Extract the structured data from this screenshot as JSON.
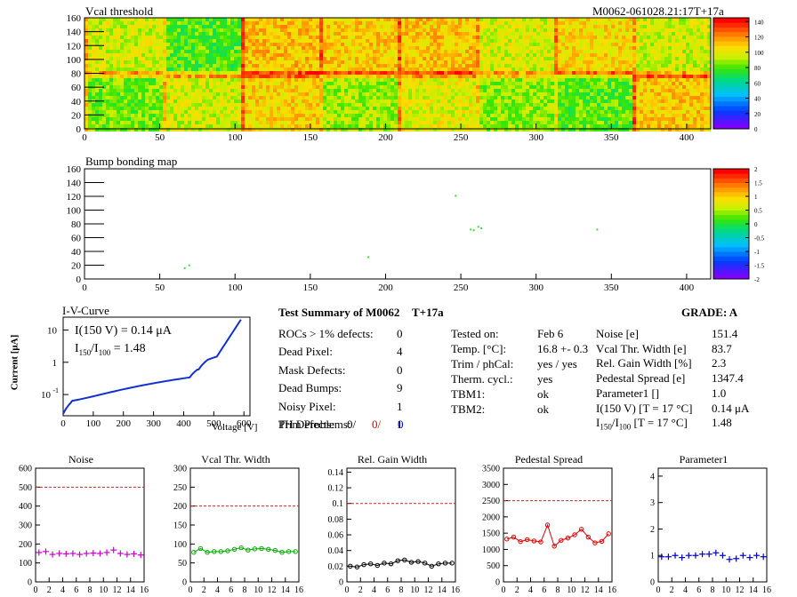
{
  "maps": {
    "vcal": {
      "title": "Vcal threshold",
      "module_label": "M0062-061028.21:17T+17a",
      "xticks": [
        0,
        50,
        100,
        150,
        200,
        250,
        300,
        350,
        400
      ],
      "yticks": [
        0,
        20,
        40,
        60,
        80,
        100,
        120,
        140,
        160
      ],
      "xrange": [
        0,
        416
      ],
      "yrange": [
        0,
        160
      ],
      "scale_ticks": [
        "0",
        "20",
        "40",
        "60",
        "80",
        "100",
        "120",
        "140"
      ],
      "scale_range": [
        0,
        145
      ]
    },
    "bump": {
      "title": "Bump bonding map",
      "xticks": [
        0,
        50,
        100,
        150,
        200,
        250,
        300,
        350,
        400
      ],
      "yticks": [
        0,
        20,
        40,
        60,
        80,
        100,
        120,
        140,
        160
      ],
      "xrange": [
        0,
        416
      ],
      "yrange": [
        0,
        160
      ],
      "scale_ticks": [
        "-2",
        "-1.5",
        "-1",
        "-0.5",
        "0",
        "0.5",
        "1",
        "1.5",
        "2"
      ],
      "scale_range": [
        -2,
        2
      ]
    }
  },
  "iv": {
    "title": "I-V-Curve",
    "ylabel": "Current [μA]",
    "xlabel": "Voltage [V]",
    "i150": "I(150 V) = 0.14 μA",
    "ratio_prefix": "I",
    "ratio_sub1": "150",
    "ratio_slash": "/I",
    "ratio_sub2": "100",
    "ratio_val": "=  1.48",
    "xticks": [
      "0",
      "100",
      "200",
      "300",
      "400",
      "500",
      "600"
    ],
    "yticks": [
      "10",
      "1",
      "10"
    ],
    "ytick_exp": "-1"
  },
  "summary": {
    "title": "Test Summary of M0062",
    "suffix": "T+17a",
    "grade": "GRADE:  A",
    "left": [
      {
        "label": "ROCs > 1% defects:",
        "value": "0"
      },
      {
        "label": "Dead Pixel:",
        "value": "4"
      },
      {
        "label": "Mask Defects:",
        "value": "0"
      },
      {
        "label": "Dead Bumps:",
        "value": "9"
      },
      {
        "label": "Noisy Pixel:",
        "value": "1"
      },
      {
        "label": "Trim Problems:",
        "value": "1"
      }
    ],
    "ph_label": "PH Defects:",
    "ph_v1": "0/",
    "ph_v2": "0/",
    "ph_v3": "0",
    "mid": [
      {
        "label": "Tested on:",
        "value": "Feb 6"
      },
      {
        "label": "Temp. [°C]:",
        "value": "16.8 +- 0.3"
      },
      {
        "label": "Trim / phCal:",
        "value": "yes / yes"
      },
      {
        "label": "Therm. cycl.:",
        "value": "yes"
      },
      {
        "label": "TBM1:",
        "value": "ok"
      },
      {
        "label": "TBM2:",
        "value": "ok"
      }
    ],
    "right": [
      {
        "label": "Noise [e]",
        "value": "151.4"
      },
      {
        "label": "Vcal Thr. Width [e]",
        "value": "83.7"
      },
      {
        "label": "Rel. Gain Width [%]",
        "value": "2.3"
      },
      {
        "label": "Pedestal Spread [e]",
        "value": "1347.4"
      },
      {
        "label": "Parameter1 []",
        "value": "1.0"
      },
      {
        "label": "I(150 V) [T = 17 °C]",
        "value": "0.14 μA"
      }
    ],
    "ratio_row": {
      "p1": "I",
      "s1": "150",
      "p2": "/I",
      "s2": "100",
      "rest": "  [T = 17 °C]",
      "value": "1.48"
    }
  },
  "chart_data": [
    {
      "type": "scatter",
      "title": "Noise",
      "color": "#cc00cc",
      "x": [
        0,
        1,
        2,
        3,
        4,
        5,
        6,
        7,
        8,
        9,
        10,
        11,
        12,
        13,
        14,
        15
      ],
      "values": [
        155,
        160,
        145,
        150,
        148,
        150,
        145,
        150,
        152,
        150,
        155,
        168,
        150,
        145,
        148,
        142
      ],
      "ylim": [
        0,
        600
      ],
      "yticks": [
        "0",
        "100",
        "200",
        "300",
        "400",
        "500",
        "600"
      ],
      "limit": 500
    },
    {
      "type": "line",
      "title": "Vcal Thr. Width",
      "color": "#00aa00",
      "x": [
        0,
        1,
        2,
        3,
        4,
        5,
        6,
        7,
        8,
        9,
        10,
        11,
        12,
        13,
        14,
        15
      ],
      "values": [
        78,
        88,
        78,
        80,
        80,
        82,
        86,
        90,
        84,
        87,
        88,
        86,
        83,
        78,
        80,
        80
      ],
      "ylim": [
        0,
        300
      ],
      "yticks": [
        "0",
        "50",
        "100",
        "150",
        "200",
        "250",
        "300"
      ],
      "limit": 200
    },
    {
      "type": "line",
      "title": "Rel. Gain Width",
      "color": "#000000",
      "x": [
        0,
        1,
        2,
        3,
        4,
        5,
        6,
        7,
        8,
        9,
        10,
        11,
        12,
        13,
        14,
        15
      ],
      "values": [
        0.02,
        0.019,
        0.022,
        0.023,
        0.021,
        0.024,
        0.023,
        0.027,
        0.028,
        0.025,
        0.026,
        0.024,
        0.02,
        0.023,
        0.024,
        0.024
      ],
      "ylim": [
        0,
        0.145
      ],
      "yticks": [
        "0",
        "0.02",
        "0.04",
        "0.06",
        "0.08",
        "0.1",
        "0.12",
        "0.14"
      ],
      "limit": 0.1
    },
    {
      "type": "line",
      "title": "Pedestal Spread",
      "color": "#dd0000",
      "x": [
        0,
        1,
        2,
        3,
        4,
        5,
        6,
        7,
        8,
        9,
        10,
        11,
        12,
        13,
        14,
        15
      ],
      "values": [
        1320,
        1380,
        1240,
        1300,
        1260,
        1230,
        1750,
        1100,
        1280,
        1350,
        1450,
        1620,
        1380,
        1200,
        1250,
        1480
      ],
      "ylim": [
        0,
        3500
      ],
      "yticks": [
        "0",
        "500",
        "1000",
        "1500",
        "2000",
        "2500",
        "3000",
        "3500"
      ],
      "limit": 2500
    },
    {
      "type": "scatter",
      "title": "Parameter1",
      "color": "#0000cc",
      "x": [
        0,
        1,
        2,
        3,
        4,
        5,
        6,
        7,
        8,
        9,
        10,
        11,
        12,
        13,
        14,
        15
      ],
      "values": [
        0.95,
        0.95,
        1.0,
        0.92,
        1.0,
        1.0,
        1.05,
        1.05,
        1.1,
        1.0,
        0.85,
        0.88,
        1.0,
        0.92,
        1.0,
        0.95
      ],
      "ylim": [
        0,
        4.3
      ],
      "yticks": [
        "0",
        "1",
        "2",
        "3",
        "4"
      ],
      "limit": null
    }
  ],
  "xticks_small": [
    "0",
    "2",
    "4",
    "6",
    "8",
    "10",
    "12",
    "14",
    "16"
  ]
}
